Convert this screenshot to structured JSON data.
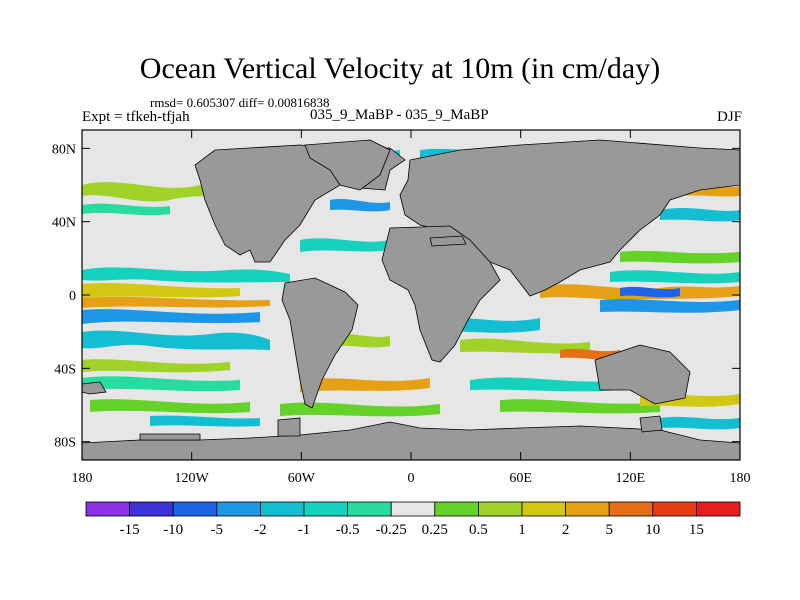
{
  "title": "Ocean Vertical Velocity at 10m (in cm/day)",
  "stats": "rmsd= 0.605307 diff= 0.00816838",
  "experiment": "Expt = tfkeh-tfjah",
  "subtitle": "035_9_MaBP - 035_9_MaBP",
  "season": "DJF",
  "map": {
    "lon_range": [
      -180,
      180
    ],
    "lat_range": [
      -90,
      90
    ],
    "x_ticks": [
      {
        "lon": -180,
        "label": "180"
      },
      {
        "lon": -120,
        "label": "120W"
      },
      {
        "lon": -60,
        "label": "60W"
      },
      {
        "lon": 0,
        "label": "0"
      },
      {
        "lon": 60,
        "label": "60E"
      },
      {
        "lon": 120,
        "label": "120E"
      },
      {
        "lon": 180,
        "label": "180"
      }
    ],
    "y_ticks": [
      {
        "lat": 80,
        "label": "80N"
      },
      {
        "lat": 40,
        "label": "40N"
      },
      {
        "lat": 0,
        "label": "0"
      },
      {
        "lat": -40,
        "label": "40S"
      },
      {
        "lat": -80,
        "label": "80S"
      }
    ],
    "land_color": "#999999",
    "ocean_background": "#e6e6e6"
  },
  "colorbar": {
    "labels": [
      "-15",
      "-10",
      "-5",
      "-2",
      "-1",
      "-0.5",
      "-0.25",
      "0.25",
      "0.5",
      "1",
      "2",
      "5",
      "10",
      "15"
    ],
    "colors": [
      "#8c2ee6",
      "#3c32d8",
      "#1e64e6",
      "#1e96e6",
      "#14bed2",
      "#14d2be",
      "#28dca0",
      "#e6e6e6",
      "#64d228",
      "#a0d228",
      "#d2c814",
      "#e6a014",
      "#e66e14",
      "#e63c14",
      "#e61e1e"
    ]
  }
}
